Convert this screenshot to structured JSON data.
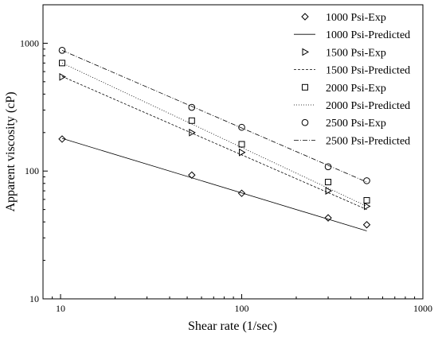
{
  "chart_data": {
    "type": "scatter",
    "title": "",
    "xlabel": "Shear rate (1/sec)",
    "ylabel": "Apparent viscosity (cP)",
    "x_scale": "log",
    "y_scale": "log",
    "xlim": [
      8,
      1000
    ],
    "ylim": [
      10,
      2000
    ],
    "x_ticks": [
      10,
      100,
      1000
    ],
    "x_tick_labels": [
      "10",
      "100",
      "1000"
    ],
    "y_ticks": [
      10,
      100,
      1000
    ],
    "y_tick_labels": [
      "10",
      "100",
      "1000"
    ],
    "grid": false,
    "legend_position": "top-right",
    "series": [
      {
        "name": "1000 Psi-Exp",
        "kind": "marker",
        "marker": "diamond",
        "x": [
          10.2,
          53,
          100,
          300,
          490
        ],
        "y": [
          178,
          93,
          67,
          43,
          38
        ]
      },
      {
        "name": "1000 Psi-Predicted",
        "kind": "line",
        "dash": "solid",
        "x": [
          10.2,
          490
        ],
        "y": [
          180,
          34
        ]
      },
      {
        "name": "1500 Psi-Exp",
        "kind": "marker",
        "marker": "triangle-right",
        "x": [
          10.2,
          53,
          100,
          300,
          490
        ],
        "y": [
          545,
          200,
          140,
          70,
          53
        ]
      },
      {
        "name": "1500 Psi-Predicted",
        "kind": "line",
        "dash": "short-dash",
        "x": [
          10.2,
          490
        ],
        "y": [
          550,
          50
        ]
      },
      {
        "name": "2000 Psi-Exp",
        "kind": "marker",
        "marker": "square",
        "x": [
          10.2,
          53,
          100,
          300,
          490
        ],
        "y": [
          700,
          248,
          162,
          82,
          59
        ]
      },
      {
        "name": "2000 Psi-Predicted",
        "kind": "line",
        "dash": "dot",
        "x": [
          10.2,
          490
        ],
        "y": [
          700,
          53
        ]
      },
      {
        "name": "2500 Psi-Exp",
        "kind": "marker",
        "marker": "circle",
        "x": [
          10.2,
          53,
          100,
          300,
          490
        ],
        "y": [
          880,
          315,
          220,
          108,
          84
        ]
      },
      {
        "name": "2500 Psi-Predicted",
        "kind": "line",
        "dash": "dash-dot",
        "x": [
          10.2,
          490
        ],
        "y": [
          880,
          82
        ]
      }
    ]
  }
}
